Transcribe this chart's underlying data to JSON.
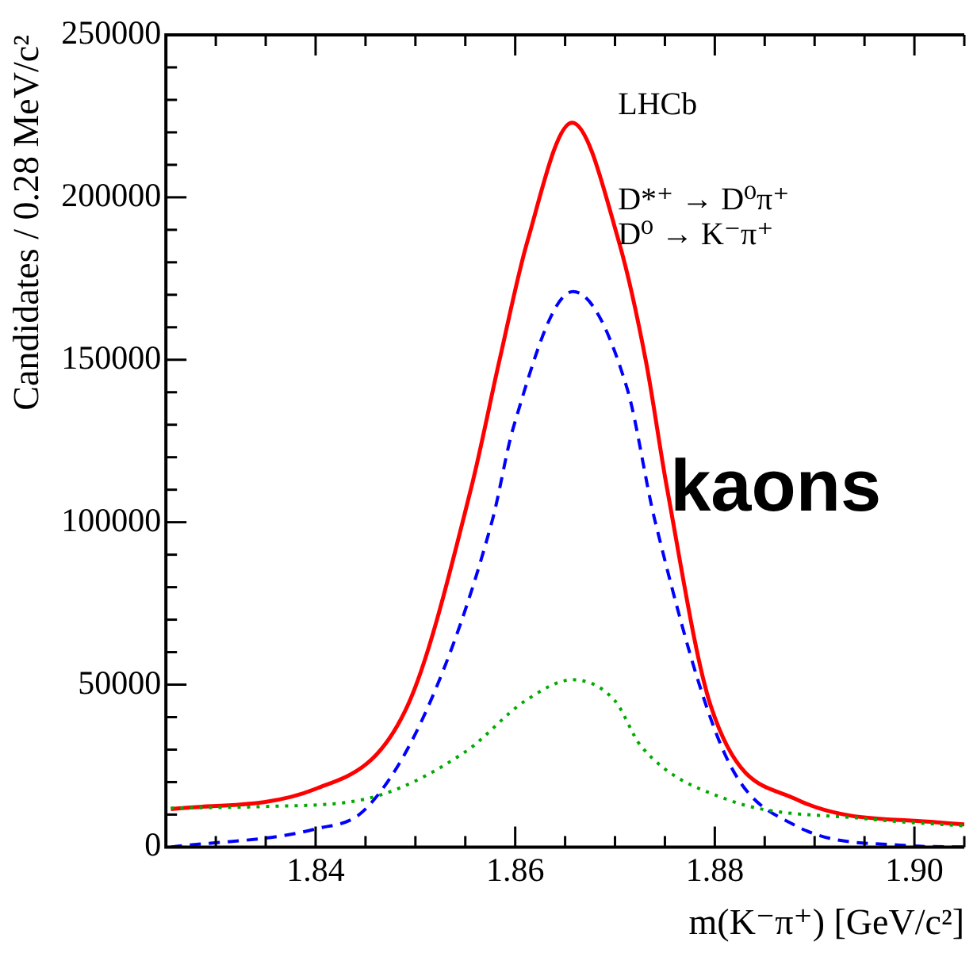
{
  "chart_data": {
    "type": "line",
    "xlabel": "m(K⁻π⁺) [GeV/c²]",
    "ylabel": "Candidates / 0.28 MeV/c²",
    "annotations": [
      "LHCb",
      "D*⁺ → D⁰π⁺",
      "D⁰ → K⁻π⁺",
      "kaons"
    ],
    "xlim": [
      1.825,
      1.905
    ],
    "xticks": [
      {
        "value": 1.83,
        "label": null
      },
      {
        "value": 1.835,
        "label": null
      },
      1.84,
      {
        "value": 1.845,
        "label": null
      },
      {
        "value": 1.85,
        "label": null
      },
      {
        "value": 1.855,
        "label": null
      },
      1.86,
      {
        "value": 1.865,
        "label": null
      },
      {
        "value": 1.87,
        "label": null
      },
      {
        "value": 1.875,
        "label": null
      },
      1.88,
      {
        "value": 1.885,
        "label": null
      },
      {
        "value": 1.89,
        "label": null
      },
      {
        "value": 1.895,
        "label": null
      },
      {
        "value": 1.9,
        "label": "1.90"
      },
      {
        "value": 1.905,
        "label": null
      }
    ],
    "ylim": [
      0,
      250000
    ],
    "yticks": [
      0,
      {
        "value": 10000,
        "label": null
      },
      {
        "value": 20000,
        "label": null
      },
      {
        "value": 30000,
        "label": null
      },
      {
        "value": 40000,
        "label": null
      },
      50000,
      {
        "value": 60000,
        "label": null
      },
      {
        "value": 70000,
        "label": null
      },
      {
        "value": 80000,
        "label": null
      },
      {
        "value": 90000,
        "label": null
      },
      100000,
      {
        "value": 110000,
        "label": null
      },
      {
        "value": 120000,
        "label": null
      },
      {
        "value": 130000,
        "label": null
      },
      {
        "value": 140000,
        "label": null
      },
      150000,
      {
        "value": 160000,
        "label": null
      },
      {
        "value": 170000,
        "label": null
      },
      {
        "value": 180000,
        "label": null
      },
      {
        "value": 190000,
        "label": null
      },
      200000,
      {
        "value": 210000,
        "label": null
      },
      {
        "value": 220000,
        "label": null
      },
      {
        "value": 230000,
        "label": null
      },
      {
        "value": 240000,
        "label": null
      },
      250000
    ],
    "grid": false,
    "legend": false,
    "marker": "none",
    "series": [
      {
        "color": "#00aa00",
        "line_style": "dotted",
        "x": [
          1.8255,
          1.835,
          1.845,
          1.8549,
          1.861,
          1.8658,
          1.87,
          1.8726,
          1.8811,
          1.8952,
          1.905
        ],
        "values": [
          12000,
          12500,
          14800,
          29100,
          45000,
          51500,
          45000,
          31100,
          14800,
          8700,
          6500
        ]
      },
      {
        "color": "#0000ff",
        "line_style": "dashed",
        "x": [
          1.8255,
          1.84,
          1.845,
          1.8513,
          1.8577,
          1.8598,
          1.8658,
          1.8712,
          1.874,
          1.8811,
          1.8881,
          1.899,
          1.905
        ],
        "values": [
          0,
          5600,
          11700,
          43400,
          100500,
          129000,
          171000,
          141300,
          100500,
          28000,
          6600,
          500,
          0
        ]
      },
      {
        "color": "#ff0000",
        "line_style": "solid",
        "x": [
          1.8255,
          1.84,
          1.8492,
          1.8556,
          1.8584,
          1.8612,
          1.8657,
          1.8704,
          1.8731,
          1.8752,
          1.8796,
          1.8881,
          1.9023,
          1.905
        ],
        "values": [
          11700,
          17900,
          43400,
          110700,
          149500,
          186200,
          223000,
          186200,
          149500,
          110700,
          43400,
          14800,
          7600,
          7000
        ]
      }
    ]
  }
}
